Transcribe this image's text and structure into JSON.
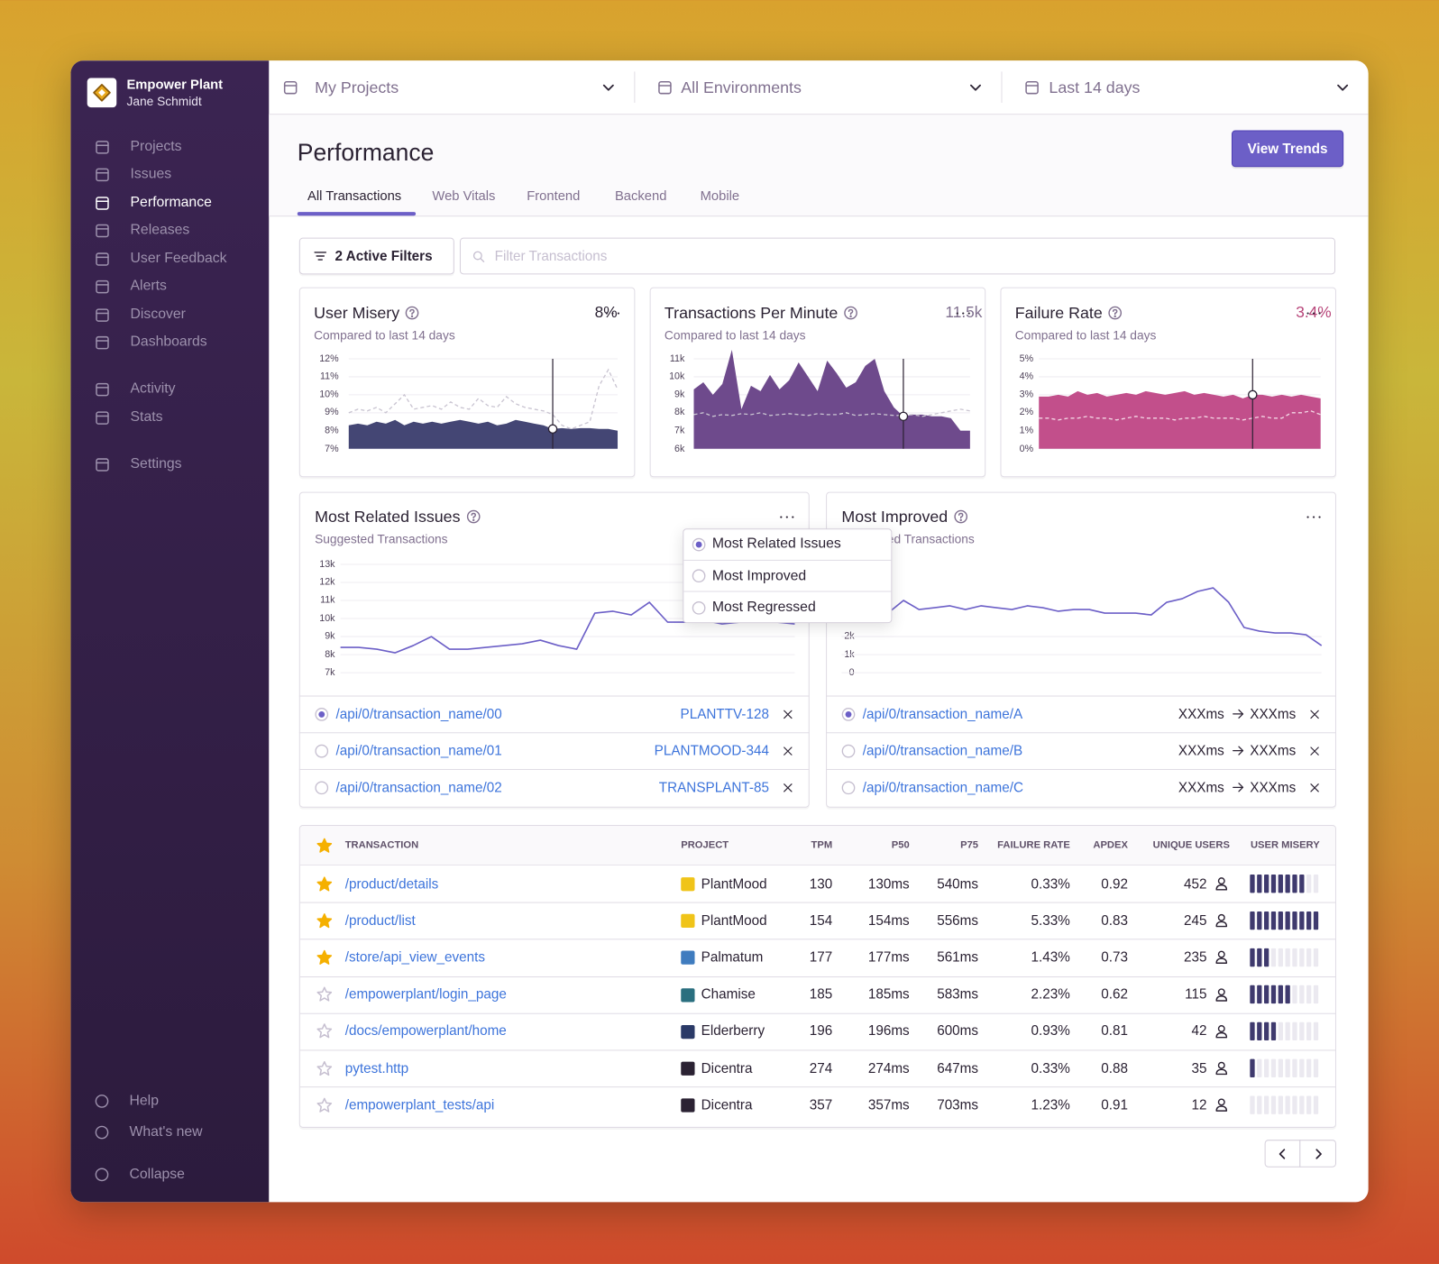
{
  "sidebar": {
    "org": "Empower Plant",
    "user": "Jane Schmidt",
    "nav": [
      "Projects",
      "Issues",
      "Performance",
      "Releases",
      "User Feedback",
      "Alerts",
      "Discover",
      "Dashboards"
    ],
    "nav2": [
      "Activity",
      "Stats"
    ],
    "nav3": [
      "Settings"
    ],
    "active_index": 2,
    "footer": [
      "Help",
      "What's new",
      "Collapse"
    ]
  },
  "topbar": {
    "filters": [
      "My Projects",
      "All Environments",
      "Last 14 days"
    ]
  },
  "header": {
    "title": "Performance",
    "button": "View Trends",
    "tabs": [
      "All Transactions",
      "Web Vitals",
      "Frontend",
      "Backend",
      "Mobile"
    ],
    "active_tab": 0
  },
  "search": {
    "filters_button": "2 Active Filters",
    "placeholder": "Filter Transactions"
  },
  "widgets": [
    {
      "title": "User Misery",
      "value": "8%",
      "value_color": "#2b2233",
      "subtitle": "Compared to last 14 days",
      "chart_data": {
        "type": "area",
        "ylim": [
          7,
          12
        ],
        "yticks": [
          {
            "value": 12,
            "label": "12%"
          },
          {
            "value": 11,
            "label": "11%"
          },
          {
            "value": 10,
            "label": "10%"
          },
          {
            "value": 9,
            "label": "9%"
          },
          {
            "value": 8,
            "label": "8%"
          },
          {
            "value": 7,
            "label": "7%"
          }
        ],
        "marker_index": 22,
        "series": [
          {
            "color": "#444674",
            "fill": true,
            "values": [
              8.3,
              8.4,
              8.3,
              8.5,
              8.4,
              8.6,
              8.3,
              8.5,
              8.4,
              8.5,
              8.4,
              8.5,
              8.6,
              8.5,
              8.4,
              8.5,
              8.3,
              8.4,
              8.6,
              8.5,
              8.4,
              8.3,
              8.1,
              8.15,
              8.1,
              8.15,
              8.15,
              8.1,
              8.1,
              8.0
            ]
          },
          {
            "color": "#c9c4d1",
            "dashed": true,
            "values": [
              9.0,
              9.2,
              9.1,
              9.3,
              9.0,
              9.5,
              10.0,
              9.2,
              9.3,
              9.4,
              9.2,
              9.6,
              9.3,
              9.2,
              9.8,
              9.4,
              9.3,
              9.9,
              9.5,
              9.3,
              9.2,
              9.1,
              8.9,
              8.3,
              8.1,
              8.3,
              8.5,
              10.5,
              11.4,
              10.3
            ]
          }
        ]
      }
    },
    {
      "title": "Transactions Per Minute",
      "value": "11.5k",
      "value_color": "#80708f",
      "subtitle": "Compared to last 14 days",
      "chart_data": {
        "type": "area",
        "ylim": [
          6000,
          11000
        ],
        "yticks": [
          {
            "value": 11000,
            "label": "11k"
          },
          {
            "value": 10000,
            "label": "10k"
          },
          {
            "value": 9000,
            "label": "9k"
          },
          {
            "value": 8000,
            "label": "8k"
          },
          {
            "value": 7000,
            "label": "7k"
          },
          {
            "value": 6000,
            "label": "6k"
          }
        ],
        "marker_index": 22,
        "series": [
          {
            "color": "#6e4a8c",
            "fill": true,
            "values": [
              9300,
              9700,
              9000,
              9600,
              11500,
              8200,
              9500,
              9200,
              10100,
              9300,
              9800,
              10800,
              10000,
              9200,
              10900,
              10200,
              9400,
              9700,
              10600,
              11000,
              9200,
              8300,
              7800,
              7900,
              7900,
              7800,
              7800,
              7700,
              7000,
              7000
            ]
          },
          {
            "color": "#c9c4d1",
            "dashed": true,
            "values": [
              7900,
              8000,
              7800,
              7900,
              7850,
              7950,
              7900,
              8000,
              7850,
              7900,
              7950,
              7900,
              7850,
              7950,
              7900,
              7900,
              8000,
              7850,
              7900,
              7950,
              7900,
              7850,
              7850,
              7900,
              7800,
              7900,
              8000,
              8100,
              8200,
              8100
            ]
          }
        ]
      }
    },
    {
      "title": "Failure Rate",
      "value": "3.4%",
      "value_color": "#b8467a",
      "subtitle": "Compared to last 14 days",
      "chart_data": {
        "type": "area",
        "ylim": [
          0,
          5
        ],
        "yticks": [
          {
            "value": 5,
            "label": "5%"
          },
          {
            "value": 4,
            "label": "4%"
          },
          {
            "value": 3,
            "label": "3%"
          },
          {
            "value": 2,
            "label": "2%"
          },
          {
            "value": 1,
            "label": "1%"
          },
          {
            "value": 0,
            "label": "0%"
          }
        ],
        "marker_index": 22,
        "series": [
          {
            "color": "#c24f8b",
            "fill": true,
            "values": [
              2.9,
              2.9,
              3.0,
              2.9,
              3.2,
              3.0,
              3.1,
              2.9,
              3.0,
              3.1,
              3.0,
              3.2,
              3.1,
              3.0,
              3.1,
              3.2,
              3.0,
              3.1,
              3.0,
              2.9,
              3.0,
              2.8,
              3.0,
              3.0,
              2.9,
              3.0,
              2.9,
              3.0,
              2.9,
              2.8
            ]
          },
          {
            "color": "#f3d6e4",
            "dashed": true,
            "values": [
              1.7,
              1.7,
              1.6,
              1.7,
              1.7,
              1.8,
              1.7,
              1.7,
              1.6,
              1.7,
              1.8,
              1.7,
              1.7,
              1.7,
              1.6,
              1.7,
              1.7,
              1.8,
              1.7,
              1.7,
              1.7,
              1.6,
              1.7,
              1.8,
              1.7,
              1.7,
              2.0,
              2.0,
              2.1,
              1.9
            ]
          }
        ]
      }
    }
  ],
  "panels": [
    {
      "title": "Most Related Issues",
      "subtitle": "Suggested Transactions",
      "chart_data": {
        "type": "line",
        "ylim": [
          7000,
          13000
        ],
        "yticks": [
          {
            "value": 13000,
            "label": "13k"
          },
          {
            "value": 12000,
            "label": "12k"
          },
          {
            "value": 11000,
            "label": "11k"
          },
          {
            "value": 10000,
            "label": "10k"
          },
          {
            "value": 9000,
            "label": "9k"
          },
          {
            "value": 8000,
            "label": "8k"
          },
          {
            "value": 7000,
            "label": "7k"
          }
        ],
        "series": [
          {
            "color": "#6c5fc7",
            "values": [
              8400,
              8400,
              8300,
              8100,
              8500,
              9000,
              8300,
              8300,
              8400,
              8500,
              8600,
              8800,
              8500,
              8300,
              10300,
              10400,
              10200,
              10900,
              9800,
              9800,
              9900,
              9700,
              9800,
              9900,
              9800,
              9700
            ]
          }
        ]
      },
      "rows": [
        {
          "transaction": "/api/0/transaction_name/00",
          "issue": "PLANTTV-128"
        },
        {
          "transaction": "/api/0/transaction_name/01",
          "issue": "PLANTMOOD-344"
        },
        {
          "transaction": "/api/0/transaction_name/02",
          "issue": "TRANSPLANT-85"
        }
      ],
      "selected": 0
    },
    {
      "title": "Most Improved",
      "subtitle": "Suggested Transactions",
      "chart_data": {
        "type": "line",
        "ylim": [
          0,
          6000
        ],
        "yticks": [
          {
            "value": 2000,
            "label": "2k"
          },
          {
            "value": 1000,
            "label": "1k"
          },
          0
        ],
        "series": [
          {
            "color": "#6c5fc7",
            "values": [
              3600,
              3500,
              3400,
              3300,
              4000,
              3500,
              3600,
              3700,
              3500,
              3700,
              3600,
              3500,
              3700,
              3600,
              3400,
              3500,
              3500,
              3300,
              3300,
              3300,
              3200,
              3900,
              4100,
              4500,
              4700,
              3900,
              2500,
              2300,
              2200,
              2200,
              2100,
              1500
            ]
          }
        ]
      },
      "rows": [
        {
          "transaction": "/api/0/transaction_name/A",
          "before": "XXXms",
          "after": "XXXms"
        },
        {
          "transaction": "/api/0/transaction_name/B",
          "before": "XXXms",
          "after": "XXXms"
        },
        {
          "transaction": "/api/0/transaction_name/C",
          "before": "XXXms",
          "after": "XXXms"
        }
      ],
      "selected": 0
    }
  ],
  "dropdown": {
    "options": [
      "Most Related Issues",
      "Most Improved",
      "Most Regressed"
    ],
    "selected": 0
  },
  "table": {
    "columns": [
      "TRANSACTION",
      "PROJECT",
      "TPM",
      "P50",
      "P75",
      "FAILURE RATE",
      "APDEX",
      "UNIQUE USERS",
      "USER MISERY"
    ],
    "misery_max": 10,
    "rows": [
      {
        "starred": true,
        "transaction": "/product/details",
        "project": "PlantMood",
        "icon_color": "#f0c419",
        "tpm": "130",
        "p50": "130ms",
        "p75": "540ms",
        "failure_rate": "0.33%",
        "apdex": "0.92",
        "users": "452",
        "misery": 8
      },
      {
        "starred": true,
        "transaction": "/product/list",
        "project": "PlantMood",
        "icon_color": "#f0c419",
        "tpm": "154",
        "p50": "154ms",
        "p75": "556ms",
        "failure_rate": "5.33%",
        "apdex": "0.83",
        "users": "245",
        "misery": 10
      },
      {
        "starred": true,
        "transaction": "/store/api_view_events",
        "project": "Palmatum",
        "icon_color": "#3f7cbf",
        "tpm": "177",
        "p50": "177ms",
        "p75": "561ms",
        "failure_rate": "1.43%",
        "apdex": "0.73",
        "users": "235",
        "misery": 3
      },
      {
        "starred": false,
        "transaction": "/empowerplant/login_page",
        "project": "Chamise",
        "icon_color": "#2a6f7f",
        "tpm": "185",
        "p50": "185ms",
        "p75": "583ms",
        "failure_rate": "2.23%",
        "apdex": "0.62",
        "users": "115",
        "misery": 6
      },
      {
        "starred": false,
        "transaction": "/docs/empowerplant/home",
        "project": "Elderberry",
        "icon_color": "#2b3a67",
        "tpm": "196",
        "p50": "196ms",
        "p75": "600ms",
        "failure_rate": "0.93%",
        "apdex": "0.81",
        "users": "42",
        "misery": 4
      },
      {
        "starred": false,
        "transaction": "pytest.http",
        "project": "Dicentra",
        "icon_color": "#2b2233",
        "tpm": "274",
        "p50": "274ms",
        "p75": "647ms",
        "failure_rate": "0.33%",
        "apdex": "0.88",
        "users": "35",
        "misery": 1
      },
      {
        "starred": false,
        "transaction": "/empowerplant_tests/api",
        "project": "Dicentra",
        "icon_color": "#2b2233",
        "tpm": "357",
        "p50": "357ms",
        "p75": "703ms",
        "failure_rate": "1.23%",
        "apdex": "0.91",
        "users": "12",
        "misery": 0
      }
    ]
  }
}
